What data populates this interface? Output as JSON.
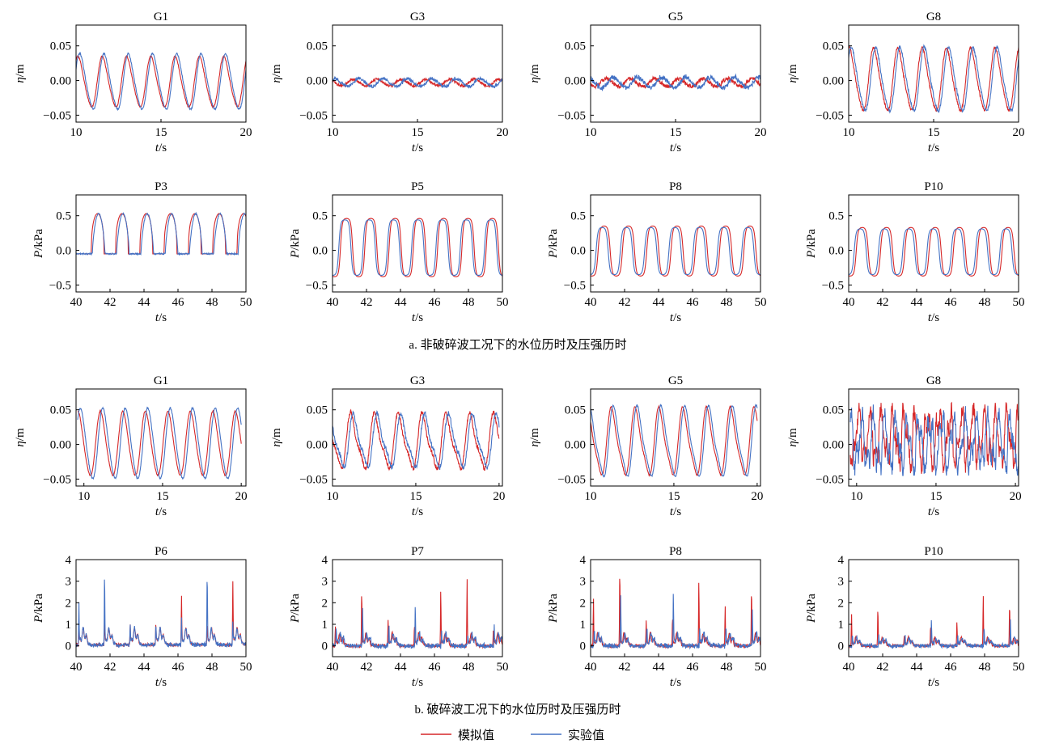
{
  "figure": {
    "caption_a": "a. 非破碎波工况下的水位历时及压强历时",
    "caption_b": "b. 破碎波工况下的水位历时及压强历时",
    "legend": [
      {
        "label": "模拟值",
        "color": "#d62728"
      },
      {
        "label": "实验值",
        "color": "#4472c4"
      }
    ]
  },
  "chart_data": [
    {
      "type": "line",
      "title": "G1",
      "xlabel": "t/s",
      "ylabel": "η/m",
      "xlim": [
        10,
        20
      ],
      "ylim": [
        -0.06,
        0.08
      ],
      "xticks": [
        10,
        15,
        20
      ],
      "yticks": [
        -0.05,
        0.0,
        0.05
      ],
      "ytick_labels": [
        "−0.05",
        "0.00",
        "0.05"
      ],
      "gen": {
        "kind": "wave",
        "t0": 10,
        "t1": 20,
        "period": 1.43,
        "amp": 0.04,
        "mean": -0.003,
        "sharp": 0.5,
        "noise": 0.001,
        "phase": 0.15,
        "exp_amp": 0.044,
        "exp_shift": 0.1
      },
      "series": [
        {
          "name": "模拟值",
          "color": "#d62728"
        },
        {
          "name": "实验值",
          "color": "#4472c4"
        }
      ]
    },
    {
      "type": "line",
      "title": "G3",
      "xlabel": "t/s",
      "ylabel": "η/m",
      "xlim": [
        10,
        20
      ],
      "ylim": [
        -0.06,
        0.08
      ],
      "xticks": [
        10,
        15,
        20
      ],
      "yticks": [
        -0.05,
        0.0,
        0.05
      ],
      "ytick_labels": [
        "−0.05",
        "0.00",
        "0.05"
      ],
      "gen": {
        "kind": "wave",
        "t0": 10,
        "t1": 20,
        "period": 1.43,
        "amp": 0.005,
        "mean": -0.003,
        "sharp": 0.3,
        "noise": 0.002,
        "phase": 0.4,
        "exp_amp": 0.006,
        "exp_shift": 0.35
      },
      "series": [
        {
          "name": "模拟值",
          "color": "#d62728"
        },
        {
          "name": "实验值",
          "color": "#4472c4"
        }
      ]
    },
    {
      "type": "line",
      "title": "G5",
      "xlabel": "t/s",
      "ylabel": "η/m",
      "xlim": [
        10,
        20
      ],
      "ylim": [
        -0.06,
        0.08
      ],
      "xticks": [
        10,
        15,
        20
      ],
      "yticks": [
        -0.05,
        0.0,
        0.05
      ],
      "ytick_labels": [
        "−0.05",
        "0.00",
        "0.05"
      ],
      "gen": {
        "kind": "wave",
        "t0": 10,
        "t1": 20,
        "period": 1.43,
        "amp": 0.006,
        "mean": -0.003,
        "sharp": 0.3,
        "noise": 0.003,
        "phase": 0.6,
        "exp_amp": 0.008,
        "exp_shift": 0.4
      },
      "series": [
        {
          "name": "模拟值",
          "color": "#d62728"
        },
        {
          "name": "实验值",
          "color": "#4472c4"
        }
      ]
    },
    {
      "type": "line",
      "title": "G8",
      "xlabel": "t/s",
      "ylabel": "η/m",
      "xlim": [
        10,
        20
      ],
      "ylim": [
        -0.06,
        0.08
      ],
      "xticks": [
        10,
        15,
        20
      ],
      "yticks": [
        -0.05,
        0.0,
        0.05
      ],
      "ytick_labels": [
        "−0.05",
        "0.00",
        "0.05"
      ],
      "gen": {
        "kind": "wave",
        "t0": 10,
        "t1": 20,
        "period": 1.43,
        "amp": 0.05,
        "mean": 0.0,
        "sharp": 0.6,
        "noise": 0.002,
        "phase": 0.2,
        "exp_amp": 0.051,
        "exp_shift": 0.12
      },
      "series": [
        {
          "name": "模拟值",
          "color": "#d62728"
        },
        {
          "name": "实验值",
          "color": "#4472c4"
        }
      ]
    },
    {
      "type": "line",
      "title": "P3",
      "xlabel": "t/s",
      "ylabel": "P/kPa",
      "xlim": [
        40,
        50
      ],
      "ylim": [
        -0.6,
        0.8
      ],
      "xticks": [
        40,
        42,
        44,
        46,
        48,
        50
      ],
      "yticks": [
        -0.5,
        0.0,
        0.5
      ],
      "ytick_labels": [
        "−0.5",
        "0.0",
        "0.5"
      ],
      "gen": {
        "kind": "pulse",
        "t0": 40,
        "t1": 50,
        "period": 1.43,
        "start": 40.9,
        "amp": 0.53,
        "base": -0.05,
        "width": 0.52,
        "exp_shift": 0.06
      },
      "series": [
        {
          "name": "模拟值",
          "color": "#d62728"
        },
        {
          "name": "实验值",
          "color": "#4472c4"
        }
      ]
    },
    {
      "type": "line",
      "title": "P5",
      "xlabel": "t/s",
      "ylabel": "P/kPa",
      "xlim": [
        40,
        50
      ],
      "ylim": [
        -0.6,
        0.8
      ],
      "xticks": [
        40,
        42,
        44,
        46,
        48,
        50
      ],
      "yticks": [
        -0.5,
        0.0,
        0.5
      ],
      "ytick_labels": [
        "−0.5",
        "0.0",
        "0.5"
      ],
      "gen": {
        "kind": "wave",
        "t0": 40,
        "t1": 50,
        "period": 1.43,
        "amp": 0.42,
        "mean": 0.04,
        "sharp": 2.2,
        "noise": 0.0,
        "phase": 0.7,
        "exp_amp": 0.4,
        "exp_shift": -0.1
      },
      "series": [
        {
          "name": "模拟值",
          "color": "#d62728"
        },
        {
          "name": "实验值",
          "color": "#4472c4"
        }
      ]
    },
    {
      "type": "line",
      "title": "P8",
      "xlabel": "t/s",
      "ylabel": "P/kPa",
      "xlim": [
        40,
        50
      ],
      "ylim": [
        -0.6,
        0.8
      ],
      "xticks": [
        40,
        42,
        44,
        46,
        48,
        50
      ],
      "yticks": [
        -0.5,
        0.0,
        0.5
      ],
      "ytick_labels": [
        "−0.5",
        "0.0",
        "0.5"
      ],
      "gen": {
        "kind": "wave",
        "t0": 40,
        "t1": 50,
        "period": 1.43,
        "amp": 0.36,
        "mean": -0.01,
        "sharp": 2.0,
        "noise": 0.0,
        "phase": 0.72,
        "exp_amp": 0.34,
        "exp_shift": -0.12
      },
      "series": [
        {
          "name": "模拟值",
          "color": "#d62728"
        },
        {
          "name": "实验值",
          "color": "#4472c4"
        }
      ]
    },
    {
      "type": "line",
      "title": "P10",
      "xlabel": "t/s",
      "ylabel": "P/kPa",
      "xlim": [
        40,
        50
      ],
      "ylim": [
        -0.6,
        0.8
      ],
      "xticks": [
        40,
        42,
        44,
        46,
        48,
        50
      ],
      "yticks": [
        -0.5,
        0.0,
        0.5
      ],
      "ytick_labels": [
        "−0.5",
        "0.0",
        "0.5"
      ],
      "gen": {
        "kind": "wave",
        "t0": 40,
        "t1": 50,
        "period": 1.43,
        "amp": 0.35,
        "mean": -0.02,
        "sharp": 2.0,
        "noise": 0.0,
        "phase": 0.72,
        "exp_amp": 0.33,
        "exp_shift": -0.12
      },
      "series": [
        {
          "name": "模拟值",
          "color": "#d62728"
        },
        {
          "name": "实验值",
          "color": "#4472c4"
        }
      ]
    },
    {
      "type": "line",
      "title": "G1",
      "xlabel": "t/s",
      "ylabel": "η/m",
      "xlim": [
        9.5,
        20.3
      ],
      "ylim": [
        -0.06,
        0.08
      ],
      "xticks": [
        10,
        15,
        20
      ],
      "yticks": [
        -0.05,
        0.0,
        0.05
      ],
      "ytick_labels": [
        "−0.05",
        "0.00",
        "0.05"
      ],
      "gen": {
        "kind": "wave",
        "t0": 9.6,
        "t1": 20,
        "period": 1.43,
        "amp": 0.05,
        "mean": 0.0,
        "sharp": 0.4,
        "noise": 0.001,
        "phase": 0.5,
        "exp_amp": 0.055,
        "exp_shift": 0.15
      },
      "series": [
        {
          "name": "模拟值",
          "color": "#d62728"
        },
        {
          "name": "实验值",
          "color": "#4472c4"
        }
      ]
    },
    {
      "type": "line",
      "title": "G3",
      "xlabel": "t/s",
      "ylabel": "η/m",
      "xlim": [
        10,
        20.2
      ],
      "ylim": [
        -0.06,
        0.08
      ],
      "xticks": [
        10,
        15,
        20
      ],
      "yticks": [
        -0.05,
        0.0,
        0.05
      ],
      "ytick_labels": [
        "−0.05",
        "0.00",
        "0.05"
      ],
      "gen": {
        "kind": "wave",
        "t0": 10,
        "t1": 20,
        "period": 1.43,
        "amp": 0.047,
        "mean": 0.003,
        "sharp": 1.2,
        "noise": 0.003,
        "phase": 0.45,
        "exp_amp": 0.045,
        "exp_shift": 0.15
      },
      "series": [
        {
          "name": "模拟值",
          "color": "#d62728"
        },
        {
          "name": "实验值",
          "color": "#4472c4"
        }
      ]
    },
    {
      "type": "line",
      "title": "G5",
      "xlabel": "t/s",
      "ylabel": "η/m",
      "xlim": [
        10,
        20.2
      ],
      "ylim": [
        -0.06,
        0.08
      ],
      "xticks": [
        10,
        15,
        20
      ],
      "yticks": [
        -0.05,
        0.0,
        0.05
      ],
      "ytick_labels": [
        "−0.05",
        "0.00",
        "0.05"
      ],
      "gen": {
        "kind": "wave",
        "t0": 10,
        "t1": 20,
        "period": 1.43,
        "amp": 0.056,
        "mean": 0.002,
        "sharp": 0.9,
        "noise": 0.001,
        "phase": 0.35,
        "exp_amp": 0.058,
        "exp_shift": 0.12
      },
      "series": [
        {
          "name": "模拟值",
          "color": "#d62728"
        },
        {
          "name": "实验值",
          "color": "#4472c4"
        }
      ]
    },
    {
      "type": "line",
      "title": "G8",
      "xlabel": "t/s",
      "ylabel": "η/m",
      "xlim": [
        9.5,
        20.2
      ],
      "ylim": [
        -0.06,
        0.08
      ],
      "xticks": [
        10,
        15,
        20
      ],
      "yticks": [
        -0.05,
        0.0,
        0.05
      ],
      "ytick_labels": [
        "−0.05",
        "0.00",
        "0.05"
      ],
      "gen": {
        "kind": "spiky",
        "t0": 9.6,
        "t1": 20.2,
        "period": 0.72,
        "amp": 0.045,
        "mean": 0.01,
        "noise": 0.012,
        "phase": 0.2,
        "exp_shift": 0.2
      },
      "series": [
        {
          "name": "模拟值",
          "color": "#d62728"
        },
        {
          "name": "实验值",
          "color": "#4472c4"
        }
      ]
    },
    {
      "type": "line",
      "title": "P6",
      "xlabel": "t/s",
      "ylabel": "P/kPa",
      "xlim": [
        40,
        50
      ],
      "ylim": [
        -0.5,
        4
      ],
      "xticks": [
        40,
        42,
        44,
        46,
        48,
        50
      ],
      "yticks": [
        0,
        1,
        2,
        3,
        4
      ],
      "ytick_labels": [
        "0",
        "1",
        "2",
        "3",
        "4"
      ],
      "gen": {
        "kind": "impact",
        "t0": 40,
        "t1": 50,
        "period": 1.51,
        "start": 40.15,
        "base": 0.05,
        "bump": 0.8,
        "peaks_sim": [
          0.8,
          1.3,
          0.9,
          1.0,
          2.3,
          1.0,
          3.0
        ],
        "peaks_exp": [
          2.0,
          3.35,
          1.0,
          0.9,
          1.2,
          3.45,
          1.1
        ],
        "exp_shift": 0.0,
        "noise": 0.12
      },
      "series": [
        {
          "name": "模拟值",
          "color": "#d62728"
        },
        {
          "name": "实验值",
          "color": "#4472c4"
        }
      ]
    },
    {
      "type": "line",
      "title": "P7",
      "xlabel": "t/s",
      "ylabel": "P/kPa",
      "xlim": [
        40,
        50
      ],
      "ylim": [
        -0.5,
        4
      ],
      "xticks": [
        40,
        42,
        44,
        46,
        48,
        50
      ],
      "yticks": [
        0,
        1,
        2,
        3,
        4
      ],
      "ytick_labels": [
        "0",
        "1",
        "2",
        "3",
        "4"
      ],
      "gen": {
        "kind": "impact",
        "t0": 40,
        "t1": 50,
        "period": 1.55,
        "start": 40.15,
        "base": 0.0,
        "bump": 0.6,
        "peaks_sim": [
          0.9,
          2.6,
          1.2,
          1.0,
          2.6,
          3.1,
          0.8
        ],
        "peaks_exp": [
          0.8,
          1.7,
          0.9,
          1.9,
          0.7,
          0.6,
          0.9
        ],
        "exp_shift": 0.05,
        "noise": 0.15
      },
      "series": [
        {
          "name": "模拟值",
          "color": "#d62728"
        },
        {
          "name": "实验值",
          "color": "#4472c4"
        }
      ]
    },
    {
      "type": "line",
      "title": "P8",
      "xlabel": "t/s",
      "ylabel": "P/kPa",
      "xlim": [
        40,
        50
      ],
      "ylim": [
        -0.5,
        4
      ],
      "xticks": [
        40,
        42,
        44,
        46,
        48,
        50
      ],
      "yticks": [
        0,
        1,
        2,
        3,
        4
      ],
      "ytick_labels": [
        "0",
        "1",
        "2",
        "3",
        "4"
      ],
      "gen": {
        "kind": "impact",
        "t0": 40,
        "t1": 50,
        "period": 1.55,
        "start": 40.15,
        "base": 0.0,
        "bump": 0.6,
        "peaks_sim": [
          2.3,
          3.55,
          1.2,
          1.4,
          3.0,
          1.8,
          2.7
        ],
        "peaks_exp": [
          0.8,
          2.3,
          1.0,
          2.5,
          0.8,
          0.9,
          1.7
        ],
        "exp_shift": 0.05,
        "noise": 0.15
      },
      "series": [
        {
          "name": "模拟值",
          "color": "#d62728"
        },
        {
          "name": "实验值",
          "color": "#4472c4"
        }
      ]
    },
    {
      "type": "line",
      "title": "P10",
      "xlabel": "t/s",
      "ylabel": "P/kPa",
      "xlim": [
        40,
        50
      ],
      "ylim": [
        -0.5,
        4
      ],
      "xticks": [
        40,
        42,
        44,
        46,
        48,
        50
      ],
      "yticks": [
        0,
        1,
        2,
        3,
        4
      ],
      "ytick_labels": [
        "0",
        "1",
        "2",
        "3",
        "4"
      ],
      "gen": {
        "kind": "impact",
        "t0": 40,
        "t1": 50,
        "period": 1.55,
        "start": 40.15,
        "base": 0.0,
        "bump": 0.4,
        "peaks_sim": [
          1.5,
          1.8,
          0.5,
          1.0,
          1.2,
          2.4,
          2.0
        ],
        "peaks_exp": [
          0.6,
          0.5,
          0.6,
          1.2,
          0.6,
          1.0,
          1.2
        ],
        "exp_shift": 0.05,
        "noise": 0.12
      },
      "series": [
        {
          "name": "模拟值",
          "color": "#d62728"
        },
        {
          "name": "实验值",
          "color": "#4472c4"
        }
      ]
    }
  ]
}
